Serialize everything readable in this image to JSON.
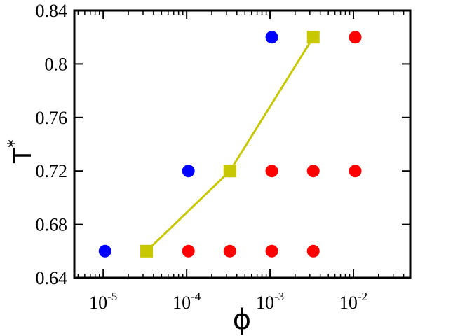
{
  "chart_data": {
    "type": "scatter",
    "xlabel": "ϕ",
    "ylabel": "T",
    "ylabel_sup": "*",
    "xscale": "log",
    "xlim": [
      4.5e-06,
      0.048
    ],
    "ylim": [
      0.64,
      0.84
    ],
    "x_ticks": [
      {
        "value": 1e-05,
        "base": "10",
        "exp": "-5"
      },
      {
        "value": 0.0001,
        "base": "10",
        "exp": "-4"
      },
      {
        "value": 0.001,
        "base": "10",
        "exp": "-3"
      },
      {
        "value": 0.01,
        "base": "10",
        "exp": "-2"
      }
    ],
    "y_ticks": [
      {
        "value": 0.64,
        "label": "0.64"
      },
      {
        "value": 0.68,
        "label": "0.68"
      },
      {
        "value": 0.72,
        "label": "0.72"
      },
      {
        "value": 0.76,
        "label": "0.76"
      },
      {
        "value": 0.8,
        "label": "0.8"
      },
      {
        "value": 0.84,
        "label": "0.84"
      }
    ],
    "grid": false,
    "series": [
      {
        "marker": "circle",
        "color": "#0000ff",
        "x": [
          1.05e-05,
          0.000105,
          0.00105
        ],
        "y": [
          0.66,
          0.72,
          0.82
        ]
      },
      {
        "marker": "circle",
        "color": "#ff0000",
        "x": [
          0.000105,
          0.00033,
          0.00105,
          0.0033,
          0.00033,
          0.00105,
          0.0033,
          0.0105,
          0.0105
        ],
        "y": [
          0.66,
          0.66,
          0.66,
          0.66,
          0.72,
          0.72,
          0.72,
          0.72,
          0.82
        ]
      },
      {
        "marker": "square",
        "line": true,
        "color": "#c8c800",
        "x": [
          3.31e-05,
          0.00033,
          0.0033
        ],
        "y": [
          0.66,
          0.72,
          0.82
        ]
      }
    ]
  }
}
